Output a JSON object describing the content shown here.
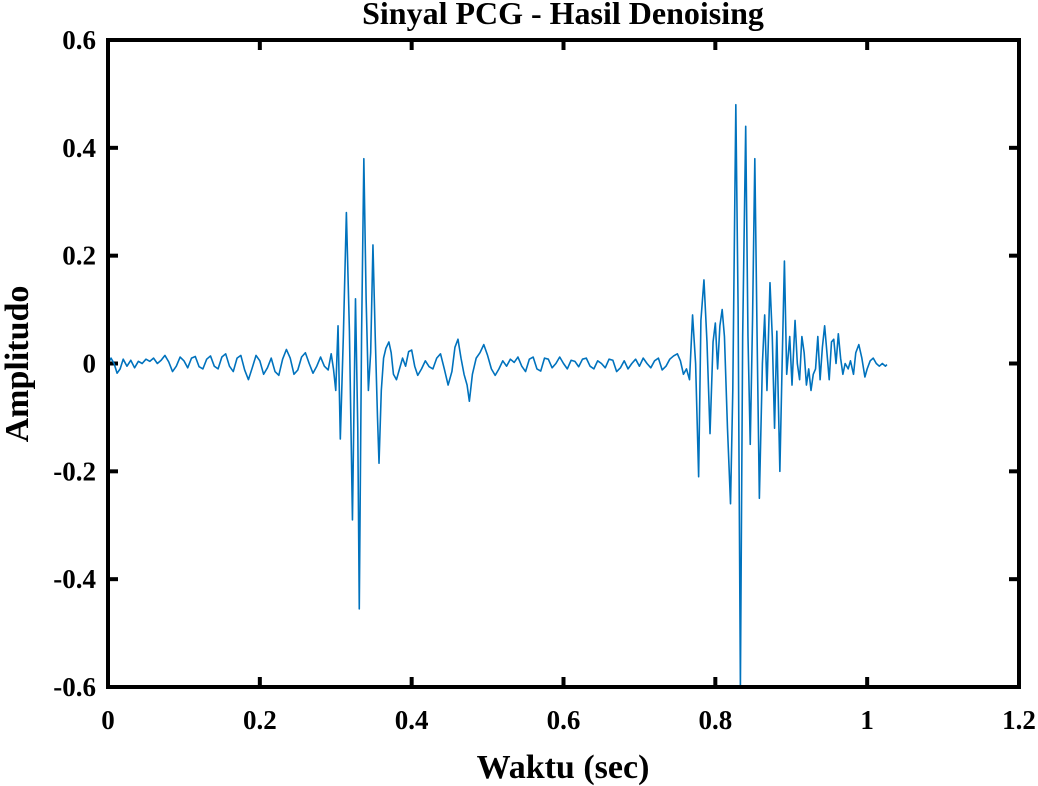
{
  "chart_data": {
    "type": "line",
    "title": "Sinyal PCG - Hasil Denoising",
    "xlabel": "Waktu (sec)",
    "ylabel": "Amplitudo",
    "xlim": [
      0,
      1.2
    ],
    "ylim": [
      -0.6,
      0.6
    ],
    "xticks": [
      "0",
      "0.2",
      "0.4",
      "0.6",
      "0.8",
      "1",
      "1.2"
    ],
    "yticks": [
      "0.6",
      "0.4",
      "0.2",
      "0",
      "-0.2",
      "-0.4",
      "-0.6"
    ],
    "grid": false,
    "line_color": "#0072BD",
    "series": [
      {
        "values": [
          [
            0.0,
            0.0
          ],
          [
            0.004,
            0.01
          ],
          [
            0.008,
            0.0
          ],
          [
            0.012,
            -0.018
          ],
          [
            0.016,
            -0.01
          ],
          [
            0.02,
            0.008
          ],
          [
            0.025,
            -0.005
          ],
          [
            0.03,
            0.006
          ],
          [
            0.035,
            -0.008
          ],
          [
            0.04,
            0.004
          ],
          [
            0.045,
            0.0
          ],
          [
            0.05,
            0.008
          ],
          [
            0.055,
            0.004
          ],
          [
            0.06,
            0.01
          ],
          [
            0.065,
            0.0
          ],
          [
            0.07,
            0.006
          ],
          [
            0.075,
            0.015
          ],
          [
            0.08,
            0.003
          ],
          [
            0.085,
            -0.015
          ],
          [
            0.09,
            -0.005
          ],
          [
            0.095,
            0.012
          ],
          [
            0.1,
            0.005
          ],
          [
            0.105,
            -0.008
          ],
          [
            0.11,
            0.01
          ],
          [
            0.115,
            0.013
          ],
          [
            0.12,
            -0.006
          ],
          [
            0.125,
            -0.01
          ],
          [
            0.13,
            0.008
          ],
          [
            0.135,
            0.014
          ],
          [
            0.14,
            -0.005
          ],
          [
            0.145,
            -0.01
          ],
          [
            0.15,
            0.012
          ],
          [
            0.155,
            0.018
          ],
          [
            0.16,
            -0.005
          ],
          [
            0.165,
            -0.015
          ],
          [
            0.17,
            0.01
          ],
          [
            0.175,
            0.015
          ],
          [
            0.18,
            -0.012
          ],
          [
            0.185,
            -0.03
          ],
          [
            0.19,
            -0.008
          ],
          [
            0.195,
            0.015
          ],
          [
            0.2,
            0.005
          ],
          [
            0.205,
            -0.02
          ],
          [
            0.21,
            -0.008
          ],
          [
            0.215,
            0.01
          ],
          [
            0.22,
            -0.015
          ],
          [
            0.225,
            -0.022
          ],
          [
            0.23,
            0.008
          ],
          [
            0.235,
            0.026
          ],
          [
            0.24,
            0.01
          ],
          [
            0.245,
            -0.02
          ],
          [
            0.25,
            -0.012
          ],
          [
            0.255,
            0.012
          ],
          [
            0.26,
            0.02
          ],
          [
            0.265,
            0.0
          ],
          [
            0.27,
            -0.018
          ],
          [
            0.275,
            -0.005
          ],
          [
            0.28,
            0.012
          ],
          [
            0.285,
            -0.005
          ],
          [
            0.29,
            -0.012
          ],
          [
            0.294,
            0.018
          ],
          [
            0.297,
            -0.01
          ],
          [
            0.3,
            -0.05
          ],
          [
            0.303,
            0.07
          ],
          [
            0.306,
            -0.14
          ],
          [
            0.31,
            0.05
          ],
          [
            0.314,
            0.28
          ],
          [
            0.318,
            0.06
          ],
          [
            0.322,
            -0.29
          ],
          [
            0.326,
            0.12
          ],
          [
            0.329,
            -0.12
          ],
          [
            0.331,
            -0.455
          ],
          [
            0.334,
            0.05
          ],
          [
            0.337,
            0.38
          ],
          [
            0.34,
            0.12
          ],
          [
            0.343,
            -0.05
          ],
          [
            0.346,
            0.02
          ],
          [
            0.349,
            0.22
          ],
          [
            0.352,
            0.05
          ],
          [
            0.355,
            -0.1
          ],
          [
            0.357,
            -0.185
          ],
          [
            0.36,
            -0.05
          ],
          [
            0.363,
            0.01
          ],
          [
            0.366,
            0.028
          ],
          [
            0.37,
            0.04
          ],
          [
            0.373,
            0.02
          ],
          [
            0.376,
            -0.02
          ],
          [
            0.38,
            -0.03
          ],
          [
            0.384,
            -0.01
          ],
          [
            0.388,
            0.01
          ],
          [
            0.392,
            -0.005
          ],
          [
            0.396,
            0.022
          ],
          [
            0.4,
            0.025
          ],
          [
            0.404,
            -0.005
          ],
          [
            0.408,
            -0.022
          ],
          [
            0.413,
            -0.01
          ],
          [
            0.418,
            0.005
          ],
          [
            0.423,
            -0.006
          ],
          [
            0.428,
            -0.01
          ],
          [
            0.433,
            0.01
          ],
          [
            0.438,
            0.018
          ],
          [
            0.443,
            -0.01
          ],
          [
            0.448,
            -0.04
          ],
          [
            0.453,
            -0.015
          ],
          [
            0.457,
            0.03
          ],
          [
            0.461,
            0.045
          ],
          [
            0.465,
            0.01
          ],
          [
            0.469,
            -0.02
          ],
          [
            0.473,
            -0.04
          ],
          [
            0.476,
            -0.07
          ],
          [
            0.48,
            -0.02
          ],
          [
            0.485,
            0.01
          ],
          [
            0.49,
            0.02
          ],
          [
            0.495,
            0.035
          ],
          [
            0.5,
            0.015
          ],
          [
            0.505,
            -0.01
          ],
          [
            0.51,
            -0.022
          ],
          [
            0.515,
            -0.01
          ],
          [
            0.52,
            0.005
          ],
          [
            0.525,
            -0.005
          ],
          [
            0.53,
            0.008
          ],
          [
            0.535,
            0.002
          ],
          [
            0.54,
            0.012
          ],
          [
            0.545,
            -0.005
          ],
          [
            0.55,
            -0.015
          ],
          [
            0.555,
            0.008
          ],
          [
            0.56,
            0.012
          ],
          [
            0.565,
            -0.01
          ],
          [
            0.57,
            -0.014
          ],
          [
            0.575,
            0.01
          ],
          [
            0.58,
            0.008
          ],
          [
            0.585,
            -0.008
          ],
          [
            0.59,
            0.0
          ],
          [
            0.595,
            0.012
          ],
          [
            0.6,
            0.0
          ],
          [
            0.605,
            -0.01
          ],
          [
            0.61,
            0.006
          ],
          [
            0.615,
            0.004
          ],
          [
            0.62,
            -0.006
          ],
          [
            0.625,
            0.008
          ],
          [
            0.63,
            0.01
          ],
          [
            0.635,
            -0.005
          ],
          [
            0.64,
            -0.01
          ],
          [
            0.645,
            0.005
          ],
          [
            0.65,
            0.0
          ],
          [
            0.655,
            -0.008
          ],
          [
            0.66,
            0.008
          ],
          [
            0.665,
            0.006
          ],
          [
            0.67,
            -0.015
          ],
          [
            0.675,
            -0.008
          ],
          [
            0.68,
            0.005
          ],
          [
            0.685,
            -0.01
          ],
          [
            0.69,
            0.0
          ],
          [
            0.695,
            0.008
          ],
          [
            0.7,
            -0.005
          ],
          [
            0.705,
            0.01
          ],
          [
            0.71,
            0.0
          ],
          [
            0.715,
            -0.008
          ],
          [
            0.72,
            0.005
          ],
          [
            0.725,
            0.01
          ],
          [
            0.73,
            -0.012
          ],
          [
            0.735,
            -0.005
          ],
          [
            0.74,
            0.008
          ],
          [
            0.745,
            0.014
          ],
          [
            0.75,
            0.018
          ],
          [
            0.754,
            0.005
          ],
          [
            0.758,
            -0.02
          ],
          [
            0.762,
            -0.01
          ],
          [
            0.766,
            -0.03
          ],
          [
            0.77,
            0.09
          ],
          [
            0.774,
            0.0
          ],
          [
            0.778,
            -0.21
          ],
          [
            0.781,
            0.08
          ],
          [
            0.785,
            0.155
          ],
          [
            0.789,
            0.04
          ],
          [
            0.793,
            -0.13
          ],
          [
            0.797,
            0.04
          ],
          [
            0.8,
            0.075
          ],
          [
            0.803,
            -0.01
          ],
          [
            0.806,
            0.07
          ],
          [
            0.809,
            0.1
          ],
          [
            0.812,
            0.05
          ],
          [
            0.816,
            -0.12
          ],
          [
            0.82,
            -0.26
          ],
          [
            0.823,
            -0.05
          ],
          [
            0.827,
            0.48
          ],
          [
            0.83,
            0.1
          ],
          [
            0.833,
            -0.6
          ],
          [
            0.836,
            0.05
          ],
          [
            0.84,
            0.44
          ],
          [
            0.843,
            0.05
          ],
          [
            0.846,
            -0.15
          ],
          [
            0.849,
            0.08
          ],
          [
            0.852,
            0.38
          ],
          [
            0.855,
            0.05
          ],
          [
            0.858,
            -0.25
          ],
          [
            0.862,
            0.0
          ],
          [
            0.865,
            0.09
          ],
          [
            0.868,
            -0.05
          ],
          [
            0.872,
            0.15
          ],
          [
            0.875,
            0.05
          ],
          [
            0.878,
            -0.12
          ],
          [
            0.881,
            0.06
          ],
          [
            0.885,
            -0.2
          ],
          [
            0.888,
            0.0
          ],
          [
            0.891,
            0.19
          ],
          [
            0.894,
            -0.02
          ],
          [
            0.898,
            0.05
          ],
          [
            0.901,
            -0.04
          ],
          [
            0.905,
            0.08
          ],
          [
            0.908,
            0.0
          ],
          [
            0.911,
            -0.03
          ],
          [
            0.914,
            0.05
          ],
          [
            0.917,
            0.02
          ],
          [
            0.92,
            -0.04
          ],
          [
            0.923,
            -0.01
          ],
          [
            0.926,
            -0.05
          ],
          [
            0.929,
            -0.02
          ],
          [
            0.932,
            -0.01
          ],
          [
            0.935,
            0.05
          ],
          [
            0.938,
            -0.03
          ],
          [
            0.941,
            0.03
          ],
          [
            0.944,
            0.07
          ],
          [
            0.947,
            0.02
          ],
          [
            0.95,
            -0.03
          ],
          [
            0.953,
            0.04
          ],
          [
            0.956,
            0.045
          ],
          [
            0.959,
            0.0
          ],
          [
            0.962,
            0.055
          ],
          [
            0.965,
            0.01
          ],
          [
            0.968,
            -0.02
          ],
          [
            0.971,
            0.0
          ],
          [
            0.975,
            -0.01
          ],
          [
            0.978,
            0.005
          ],
          [
            0.982,
            -0.02
          ],
          [
            0.985,
            0.02
          ],
          [
            0.989,
            0.035
          ],
          [
            0.993,
            0.01
          ],
          [
            0.997,
            -0.025
          ],
          [
            1.0,
            -0.01
          ],
          [
            1.004,
            0.005
          ],
          [
            1.008,
            0.01
          ],
          [
            1.012,
            0.0
          ],
          [
            1.016,
            -0.005
          ],
          [
            1.02,
            0.0
          ],
          [
            1.024,
            -0.005
          ],
          [
            1.026,
            -0.002
          ]
        ]
      }
    ]
  }
}
